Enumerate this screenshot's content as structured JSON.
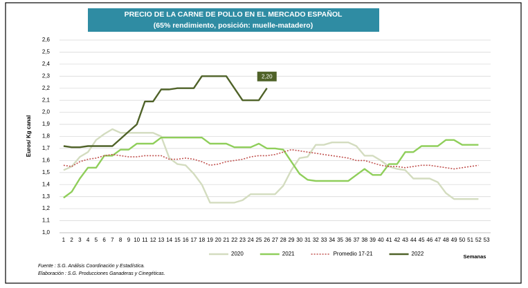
{
  "chart_data": {
    "type": "line",
    "title": "PRECIO DE LA CARNE DE POLLO EN EL MERCADO ESPAÑOL",
    "subtitle": "(65% rendimiento, posición: muelle-matadero)",
    "y_label": "Euros/ Kg canal",
    "x_label": "Semanas",
    "footnotes": [
      "Fuente : S.G. Análisis Coordinación y Estadística.",
      "Elaboración : S.G. Producciones Ganaderas y Cinegéticas."
    ],
    "categories": [
      "1",
      "2",
      "3",
      "4",
      "5",
      "6",
      "7",
      "8",
      "9",
      "10",
      "11",
      "12",
      "13",
      "14",
      "15",
      "16",
      "17",
      "18",
      "19",
      "20",
      "21",
      "22",
      "23",
      "24",
      "25",
      "26",
      "27",
      "28",
      "29",
      "30",
      "31",
      "32",
      "33",
      "34",
      "35",
      "36",
      "37",
      "38",
      "39",
      "40",
      "41",
      "42",
      "43",
      "44",
      "45",
      "46",
      "47",
      "48",
      "49",
      "50",
      "51",
      "52",
      "53"
    ],
    "ylim": [
      1.0,
      2.6
    ],
    "yticks": [
      {
        "value": 1.0,
        "label": "1,0"
      },
      {
        "value": 1.1,
        "label": "1,1"
      },
      {
        "value": 1.2,
        "label": "1,2"
      },
      {
        "value": 1.3,
        "label": "1,3"
      },
      {
        "value": 1.4,
        "label": "1,4"
      },
      {
        "value": 1.5,
        "label": "1,5"
      },
      {
        "value": 1.6,
        "label": "1,6"
      },
      {
        "value": 1.7,
        "label": "1,7"
      },
      {
        "value": 1.8,
        "label": "1,8"
      },
      {
        "value": 1.9,
        "label": "1,9"
      },
      {
        "value": 2.0,
        "label": "2,0"
      },
      {
        "value": 2.1,
        "label": "2,1"
      },
      {
        "value": 2.2,
        "label": "2,2"
      },
      {
        "value": 2.3,
        "label": "2,3"
      },
      {
        "value": 2.4,
        "label": "2,4"
      },
      {
        "value": 2.5,
        "label": "2,5"
      },
      {
        "value": 2.6,
        "label": "2,6"
      }
    ],
    "grid": true,
    "legend": "bottom",
    "series": [
      {
        "name": "2020",
        "color": "#d3dcbf",
        "dash": false,
        "values": [
          1.52,
          1.55,
          1.63,
          1.67,
          1.77,
          1.82,
          1.86,
          1.83,
          1.83,
          1.83,
          1.83,
          1.83,
          1.8,
          1.62,
          1.57,
          1.56,
          1.49,
          1.4,
          1.25,
          1.25,
          1.25,
          1.25,
          1.27,
          1.32,
          1.32,
          1.32,
          1.32,
          1.39,
          1.52,
          1.62,
          1.63,
          1.73,
          1.73,
          1.75,
          1.75,
          1.75,
          1.72,
          1.64,
          1.64,
          1.6,
          1.55,
          1.53,
          1.52,
          1.45,
          1.45,
          1.45,
          1.42,
          1.33,
          1.28,
          1.28,
          1.28,
          1.28,
          null
        ]
      },
      {
        "name": "2021",
        "color": "#8fce5a",
        "dash": false,
        "values": [
          1.29,
          1.34,
          1.45,
          1.54,
          1.54,
          1.64,
          1.64,
          1.69,
          1.69,
          1.74,
          1.74,
          1.74,
          1.79,
          1.79,
          1.79,
          1.79,
          1.79,
          1.79,
          1.74,
          1.74,
          1.74,
          1.71,
          1.71,
          1.71,
          1.74,
          1.7,
          1.7,
          1.69,
          1.59,
          1.49,
          1.44,
          1.43,
          1.43,
          1.43,
          1.43,
          1.43,
          1.48,
          1.53,
          1.48,
          1.48,
          1.57,
          1.57,
          1.67,
          1.67,
          1.72,
          1.72,
          1.72,
          1.77,
          1.77,
          1.73,
          1.73,
          1.73,
          null
        ]
      },
      {
        "name": "Promedio 17-21",
        "color": "#c0504d",
        "dash": true,
        "values": [
          1.56,
          1.55,
          1.59,
          1.61,
          1.62,
          1.64,
          1.65,
          1.64,
          1.63,
          1.63,
          1.64,
          1.64,
          1.64,
          1.61,
          1.61,
          1.62,
          1.61,
          1.59,
          1.56,
          1.57,
          1.59,
          1.6,
          1.61,
          1.63,
          1.64,
          1.64,
          1.65,
          1.67,
          1.69,
          1.68,
          1.67,
          1.66,
          1.65,
          1.64,
          1.63,
          1.62,
          1.6,
          1.6,
          1.58,
          1.56,
          1.55,
          1.55,
          1.54,
          1.55,
          1.56,
          1.56,
          1.55,
          1.54,
          1.53,
          1.54,
          1.55,
          1.56,
          null
        ]
      },
      {
        "name": "2022",
        "color": "#4f6228",
        "dash": false,
        "values": [
          1.72,
          1.71,
          1.71,
          1.72,
          1.72,
          1.72,
          1.72,
          1.78,
          1.84,
          1.9,
          2.09,
          2.09,
          2.19,
          2.19,
          2.2,
          2.2,
          2.2,
          2.3,
          2.3,
          2.3,
          2.3,
          2.2,
          2.1,
          2.1,
          2.1,
          2.2,
          null,
          null,
          null,
          null,
          null,
          null,
          null,
          null,
          null,
          null,
          null,
          null,
          null,
          null,
          null,
          null,
          null,
          null,
          null,
          null,
          null,
          null,
          null,
          null,
          null,
          null,
          null
        ],
        "value_labels": [
          null,
          null,
          null,
          null,
          null,
          null,
          null,
          null,
          null,
          null,
          null,
          null,
          null,
          null,
          null,
          null,
          null,
          null,
          null,
          null,
          null,
          null,
          null,
          null,
          null,
          "2,20",
          null,
          null,
          null,
          null,
          null,
          null,
          null,
          null,
          null,
          null,
          null,
          null,
          null,
          null,
          null,
          null,
          null,
          null,
          null,
          null,
          null,
          null,
          null,
          null,
          null,
          null,
          null
        ]
      }
    ]
  }
}
